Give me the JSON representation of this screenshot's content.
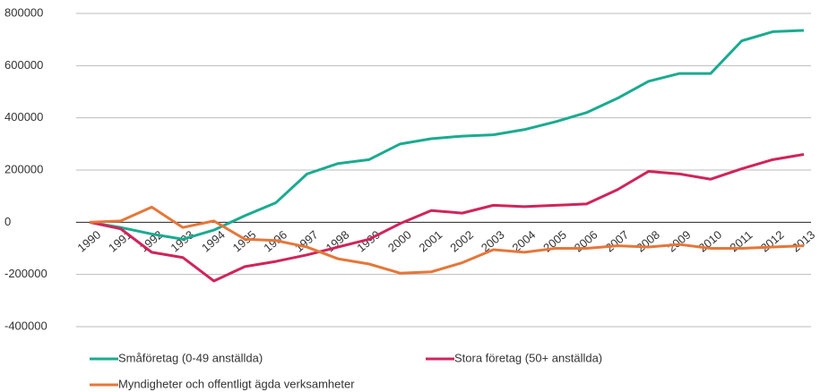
{
  "chart_data": {
    "type": "line",
    "categories": [
      "1990",
      "1991",
      "1992",
      "1993",
      "1994",
      "1995",
      "1996",
      "1997",
      "1998",
      "1999",
      "2000",
      "2001",
      "2002",
      "2003",
      "2004",
      "2005",
      "2006",
      "2007",
      "2008",
      "2009",
      "2010",
      "2011",
      "2012",
      "2013"
    ],
    "series": [
      {
        "name": "Småföretag (0-49 anställda)",
        "color": "#1aab8f",
        "values": [
          0,
          -20000,
          -45000,
          -65000,
          -30000,
          25000,
          75000,
          185000,
          225000,
          240000,
          300000,
          320000,
          330000,
          335000,
          355000,
          385000,
          420000,
          475000,
          540000,
          570000,
          570000,
          695000,
          730000,
          735000
        ]
      },
      {
        "name": "Stora företag (50+ anställda)",
        "color": "#d0245a",
        "values": [
          0,
          -25000,
          -115000,
          -135000,
          -225000,
          -170000,
          -150000,
          -125000,
          -95000,
          -65000,
          -5000,
          45000,
          35000,
          65000,
          60000,
          65000,
          70000,
          125000,
          195000,
          185000,
          165000,
          205000,
          240000,
          260000
        ]
      },
      {
        "name": "Myndigheter och offentligt ägda verksamheter",
        "color": "#e5773a",
        "values": [
          0,
          5000,
          58000,
          -20000,
          5000,
          -65000,
          -70000,
          -95000,
          -140000,
          -160000,
          -195000,
          -190000,
          -155000,
          -105000,
          -115000,
          -100000,
          -100000,
          -90000,
          -95000,
          -85000,
          -100000,
          -100000,
          -95000,
          -90000
        ]
      }
    ],
    "ylim": [
      -400000,
      800000
    ],
    "yticks": [
      -400000,
      -200000,
      0,
      200000,
      400000,
      600000,
      800000
    ],
    "grid": true,
    "legend": "bottom"
  }
}
